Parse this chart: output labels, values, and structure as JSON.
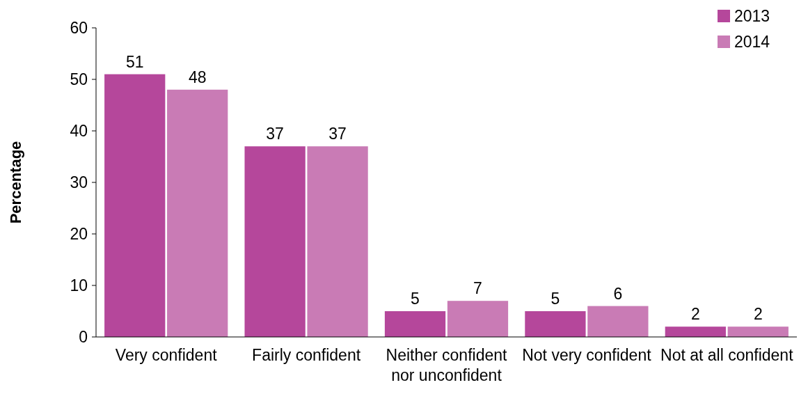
{
  "chart_data": {
    "type": "bar",
    "ylabel": "Percentage",
    "categories": [
      "Very confident",
      "Fairly confident",
      "Neither confident nor unconfident",
      "Not very confident",
      "Not at all confident"
    ],
    "series": [
      {
        "name": "2013",
        "color": "#b5479b",
        "values": [
          51,
          37,
          5,
          5,
          2
        ]
      },
      {
        "name": "2014",
        "color": "#c97bb5",
        "values": [
          48,
          37,
          7,
          6,
          2
        ]
      }
    ],
    "ylim": [
      0,
      60
    ],
    "yticks": [
      0,
      10,
      20,
      30,
      40,
      50,
      60
    ],
    "data_labels": true,
    "legend": "top right",
    "grid": false
  }
}
